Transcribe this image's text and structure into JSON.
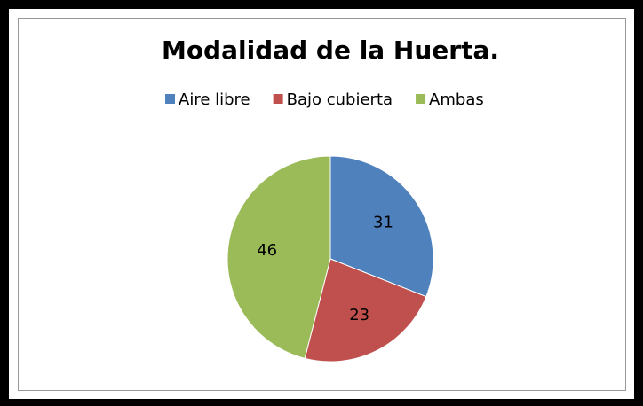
{
  "chart_data": {
    "type": "pie",
    "title": "Modalidad de la Huerta.",
    "categories": [
      "Aire libre",
      "Bajo cubierta",
      "Ambas"
    ],
    "values": [
      31,
      23,
      46
    ],
    "colors": [
      "#4f81bd",
      "#c0504d",
      "#9bbb59"
    ],
    "legend": "top"
  }
}
